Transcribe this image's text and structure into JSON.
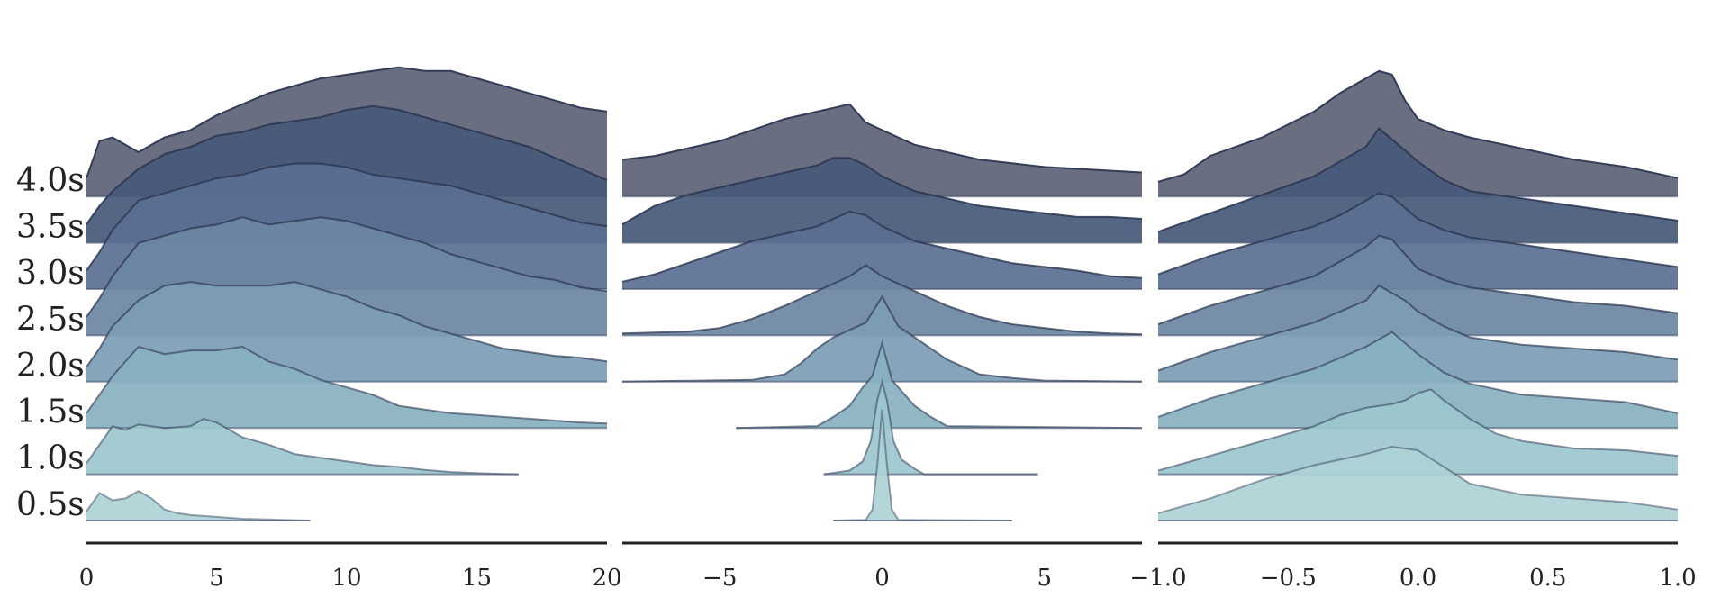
{
  "chart_data": {
    "type": "area",
    "layout": "ridgeline, 3 panels sharing row labels",
    "rows": [
      "0.5s",
      "1.0s",
      "1.5s",
      "2.0s",
      "2.5s",
      "3.0s",
      "3.5s",
      "4.0s"
    ],
    "row_colors": [
      "#aed2d6",
      "#9cc7cd",
      "#88b1c0",
      "#7c9db4",
      "#6d86a3",
      "#5b6f92",
      "#47587a",
      "#5d6276"
    ],
    "grid": false,
    "legend": "none",
    "panels": [
      {
        "xlim": [
          0,
          20
        ],
        "xticks": [
          "0",
          "5",
          "10",
          "15",
          "20"
        ],
        "series": [
          {
            "name": "0.5s",
            "x": [
              0,
              0.5,
              1,
              1.5,
              2,
              2.5,
              3,
              3.5,
              4,
              5,
              6,
              7,
              8,
              8.6
            ],
            "y": [
              0.25,
              0.75,
              0.55,
              0.6,
              0.8,
              0.6,
              0.3,
              0.2,
              0.15,
              0.1,
              0.05,
              0.03,
              0.01,
              0
            ]
          },
          {
            "name": "1.0s",
            "x": [
              0,
              0.5,
              1,
              1.5,
              2,
              3,
              4,
              4.5,
              5,
              5.5,
              6,
              7,
              8,
              9,
              10,
              11,
              12,
              13,
              14,
              15,
              16,
              16.6
            ],
            "y": [
              0.3,
              0.8,
              1.3,
              1.2,
              1.35,
              1.25,
              1.3,
              1.5,
              1.4,
              1.2,
              1.0,
              0.8,
              0.55,
              0.45,
              0.35,
              0.25,
              0.2,
              0.12,
              0.06,
              0.03,
              0.01,
              0
            ]
          },
          {
            "name": "1.5s",
            "x": [
              0,
              0.5,
              1,
              2,
              3,
              4,
              5,
              6,
              7,
              8,
              9,
              10,
              11,
              12,
              13,
              14,
              15,
              16,
              17,
              18,
              19,
              20
            ],
            "y": [
              0.4,
              0.9,
              1.4,
              2.2,
              2.0,
              2.1,
              2.1,
              2.2,
              1.8,
              1.6,
              1.3,
              1.1,
              0.9,
              0.6,
              0.5,
              0.4,
              0.35,
              0.3,
              0.25,
              0.2,
              0.15,
              0.12
            ]
          },
          {
            "name": "2.0s",
            "x": [
              0,
              0.5,
              1,
              2,
              3,
              4,
              5,
              6,
              7,
              8,
              9,
              10,
              11,
              12,
              13,
              14,
              15,
              16,
              17,
              18,
              19,
              20
            ],
            "y": [
              0.4,
              0.9,
              1.5,
              2.2,
              2.6,
              2.7,
              2.6,
              2.6,
              2.6,
              2.7,
              2.5,
              2.3,
              2.0,
              1.8,
              1.5,
              1.3,
              1.1,
              0.9,
              0.8,
              0.7,
              0.65,
              0.55
            ]
          },
          {
            "name": "2.5s",
            "x": [
              0,
              0.5,
              1,
              2,
              3,
              4,
              5,
              6,
              7,
              8,
              9,
              10,
              11,
              12,
              13,
              14,
              15,
              16,
              17,
              18,
              19,
              20
            ],
            "y": [
              0.5,
              1.0,
              1.6,
              2.5,
              2.7,
              2.9,
              3.0,
              3.2,
              3.0,
              3.1,
              3.2,
              3.1,
              2.9,
              2.7,
              2.5,
              2.2,
              2.0,
              1.8,
              1.6,
              1.5,
              1.3,
              1.2
            ]
          },
          {
            "name": "3.0s",
            "x": [
              0,
              0.5,
              1,
              2,
              3,
              4,
              5,
              6,
              7,
              8,
              9,
              10,
              11,
              12,
              13,
              14,
              15,
              16,
              17,
              18,
              19,
              20
            ],
            "y": [
              0.5,
              1.0,
              1.6,
              2.4,
              2.6,
              2.8,
              3.0,
              3.1,
              3.3,
              3.4,
              3.4,
              3.3,
              3.1,
              3.0,
              2.9,
              2.8,
              2.6,
              2.4,
              2.2,
              2.0,
              1.8,
              1.7
            ]
          },
          {
            "name": "3.5s",
            "x": [
              0,
              0.5,
              1,
              2,
              3,
              4,
              5,
              6,
              7,
              8,
              9,
              10,
              11,
              12,
              13,
              14,
              15,
              16,
              17,
              18,
              19,
              20
            ],
            "y": [
              0.5,
              1.0,
              1.4,
              2.0,
              2.4,
              2.6,
              2.9,
              3.0,
              3.2,
              3.3,
              3.4,
              3.6,
              3.7,
              3.6,
              3.4,
              3.2,
              3.0,
              2.8,
              2.6,
              2.3,
              2.0,
              1.7
            ]
          },
          {
            "name": "4.0s",
            "x": [
              0,
              0.5,
              1,
              1.5,
              2,
              2.5,
              3,
              4,
              5,
              6,
              7,
              8,
              9,
              10,
              11,
              12,
              13,
              14,
              15,
              16,
              17,
              18,
              19,
              20
            ],
            "y": [
              0.5,
              1.5,
              1.6,
              1.4,
              1.2,
              1.4,
              1.6,
              1.8,
              2.2,
              2.5,
              2.8,
              3.0,
              3.2,
              3.3,
              3.4,
              3.5,
              3.4,
              3.4,
              3.2,
              3.0,
              2.8,
              2.6,
              2.4,
              2.3
            ]
          }
        ]
      },
      {
        "xlim": [
          -8,
          8
        ],
        "xticks": [
          "−5",
          "0",
          "5"
        ],
        "series": [
          {
            "name": "0.5s",
            "x": [
              -1.5,
              -0.5,
              -0.3,
              -0.15,
              0,
              0.15,
              0.3,
              0.5,
              4
            ],
            "y": [
              0,
              0.02,
              0.3,
              1.5,
              3.0,
              1.5,
              0.3,
              0.02,
              0
            ]
          },
          {
            "name": "1.0s",
            "x": [
              -1.8,
              -1,
              -0.6,
              -0.35,
              -0.15,
              0,
              0.15,
              0.35,
              0.6,
              1,
              1.3,
              4.8
            ],
            "y": [
              0,
              0.1,
              0.35,
              0.9,
              2.0,
              2.5,
              2.0,
              0.9,
              0.4,
              0.15,
              0,
              0
            ]
          },
          {
            "name": "1.5s",
            "x": [
              -4.5,
              -2,
              -1.5,
              -1,
              -0.6,
              -0.3,
              0,
              0.3,
              0.6,
              1,
              1.5,
              2,
              8
            ],
            "y": [
              0,
              0.05,
              0.3,
              0.6,
              1.1,
              1.4,
              2.3,
              1.3,
              1.0,
              0.6,
              0.3,
              0.05,
              0
            ]
          },
          {
            "name": "2.0s",
            "x": [
              -8,
              -4,
              -3,
              -2.5,
              -2,
              -1.5,
              -1,
              -0.5,
              0,
              0.5,
              1,
              1.5,
              2,
              2.5,
              3,
              4,
              5,
              8
            ],
            "y": [
              0,
              0.05,
              0.2,
              0.5,
              0.9,
              1.2,
              1.4,
              1.6,
              2.3,
              1.5,
              1.2,
              0.9,
              0.6,
              0.4,
              0.2,
              0.1,
              0.03,
              0
            ]
          },
          {
            "name": "2.5s",
            "x": [
              -8,
              -6,
              -5,
              -4,
              -3,
              -2.5,
              -2,
              -1.5,
              -1,
              -0.5,
              0,
              0.5,
              1,
              1.5,
              2,
              3,
              4,
              5,
              6,
              7,
              8
            ],
            "y": [
              0.05,
              0.1,
              0.2,
              0.45,
              0.8,
              1.0,
              1.2,
              1.4,
              1.6,
              1.9,
              1.6,
              1.4,
              1.2,
              1.0,
              0.8,
              0.5,
              0.3,
              0.2,
              0.1,
              0.05,
              0.03
            ]
          },
          {
            "name": "3.0s",
            "x": [
              -8,
              -7,
              -6,
              -5,
              -4,
              -3,
              -2,
              -1.5,
              -1,
              -0.5,
              0,
              0.5,
              1,
              2,
              3,
              4,
              5,
              6,
              7,
              8
            ],
            "y": [
              0.2,
              0.4,
              0.7,
              1.0,
              1.3,
              1.5,
              1.7,
              1.9,
              2.1,
              2.0,
              1.7,
              1.5,
              1.3,
              1.1,
              0.9,
              0.7,
              0.6,
              0.5,
              0.35,
              0.3
            ]
          },
          {
            "name": "3.5s",
            "x": [
              -8,
              -7,
              -6,
              -5,
              -4,
              -3,
              -2,
              -1.5,
              -1,
              -0.5,
              0,
              0.5,
              1,
              2,
              3,
              4,
              5,
              6,
              7,
              8
            ],
            "y": [
              0.5,
              1.0,
              1.3,
              1.5,
              1.7,
              1.9,
              2.1,
              2.3,
              2.3,
              2.1,
              1.8,
              1.6,
              1.4,
              1.2,
              1.0,
              0.9,
              0.8,
              0.7,
              0.7,
              0.65
            ]
          },
          {
            "name": "4.0s",
            "x": [
              -8,
              -7,
              -6,
              -5,
              -4,
              -3,
              -2,
              -1.5,
              -1,
              -0.5,
              0,
              0.5,
              1,
              2,
              3,
              4,
              5,
              6,
              7,
              8
            ],
            "y": [
              1.0,
              1.1,
              1.3,
              1.5,
              1.8,
              2.1,
              2.3,
              2.4,
              2.5,
              2.0,
              1.8,
              1.6,
              1.4,
              1.2,
              1.0,
              0.9,
              0.8,
              0.75,
              0.7,
              0.65
            ]
          }
        ]
      },
      {
        "xlim": [
          -1.0,
          1.0
        ],
        "xticks": [
          "−1.0",
          "−0.5",
          "0.0",
          "0.5",
          "1.0"
        ],
        "series": [
          {
            "name": "0.5s",
            "x": [
              -1.0,
              -0.8,
              -0.6,
              -0.4,
              -0.2,
              -0.1,
              0.0,
              0.2,
              0.4,
              0.6,
              0.8,
              1.0
            ],
            "y": [
              0.2,
              0.6,
              1.1,
              1.5,
              1.8,
              2.0,
              1.9,
              1.0,
              0.7,
              0.6,
              0.5,
              0.3
            ]
          },
          {
            "name": "1.0s",
            "x": [
              -1.0,
              -0.8,
              -0.6,
              -0.4,
              -0.3,
              -0.2,
              -0.1,
              -0.05,
              0.0,
              0.05,
              0.1,
              0.2,
              0.3,
              0.4,
              0.5,
              0.6,
              0.8,
              1.0
            ],
            "y": [
              0.1,
              0.5,
              0.9,
              1.3,
              1.6,
              1.8,
              1.9,
              2.0,
              2.2,
              2.3,
              2.0,
              1.5,
              1.1,
              0.9,
              0.8,
              0.7,
              0.65,
              0.5
            ]
          },
          {
            "name": "1.5s",
            "x": [
              -1.0,
              -0.8,
              -0.6,
              -0.4,
              -0.3,
              -0.2,
              -0.1,
              0.0,
              0.1,
              0.2,
              0.4,
              0.6,
              0.8,
              1.0
            ],
            "y": [
              0.3,
              0.8,
              1.2,
              1.6,
              1.9,
              2.2,
              2.6,
              2.0,
              1.5,
              1.2,
              0.9,
              0.8,
              0.7,
              0.4
            ]
          },
          {
            "name": "2.0s",
            "x": [
              -1.0,
              -0.8,
              -0.6,
              -0.4,
              -0.3,
              -0.2,
              -0.15,
              -0.1,
              -0.05,
              0.0,
              0.1,
              0.2,
              0.4,
              0.6,
              0.8,
              1.0
            ],
            "y": [
              0.3,
              0.8,
              1.2,
              1.6,
              1.9,
              2.2,
              2.6,
              2.4,
              2.2,
              1.9,
              1.5,
              1.2,
              1.0,
              0.9,
              0.8,
              0.6
            ]
          },
          {
            "name": "2.5s",
            "x": [
              -1.0,
              -0.8,
              -0.6,
              -0.4,
              -0.3,
              -0.2,
              -0.15,
              -0.1,
              -0.05,
              0.0,
              0.1,
              0.2,
              0.4,
              0.6,
              0.8,
              1.0
            ],
            "y": [
              0.3,
              0.8,
              1.2,
              1.6,
              2.0,
              2.4,
              2.7,
              2.6,
              2.2,
              1.8,
              1.5,
              1.3,
              1.1,
              0.9,
              0.8,
              0.6
            ]
          },
          {
            "name": "3.0s",
            "x": [
              -1.0,
              -0.8,
              -0.6,
              -0.4,
              -0.3,
              -0.2,
              -0.15,
              -0.1,
              0.0,
              0.1,
              0.2,
              0.4,
              0.6,
              0.8,
              1.0
            ],
            "y": [
              0.4,
              0.9,
              1.3,
              1.7,
              2.0,
              2.4,
              2.6,
              2.5,
              1.9,
              1.6,
              1.4,
              1.2,
              1.0,
              0.8,
              0.6
            ]
          },
          {
            "name": "3.5s",
            "x": [
              -1.0,
              -0.8,
              -0.6,
              -0.4,
              -0.3,
              -0.2,
              -0.15,
              -0.1,
              0.0,
              0.1,
              0.2,
              0.4,
              0.6,
              0.8,
              1.0
            ],
            "y": [
              0.3,
              0.8,
              1.3,
              1.8,
              2.2,
              2.6,
              3.1,
              2.8,
              2.2,
              1.7,
              1.4,
              1.2,
              1.0,
              0.8,
              0.6
            ]
          },
          {
            "name": "4.0s",
            "x": [
              -1.0,
              -0.9,
              -0.8,
              -0.6,
              -0.4,
              -0.3,
              -0.2,
              -0.15,
              -0.1,
              -0.05,
              0.0,
              0.1,
              0.2,
              0.4,
              0.6,
              0.8,
              1.0
            ],
            "y": [
              0.4,
              0.6,
              1.1,
              1.6,
              2.3,
              2.8,
              3.2,
              3.4,
              3.3,
              2.6,
              2.1,
              1.8,
              1.6,
              1.3,
              1.0,
              0.8,
              0.5
            ]
          }
        ]
      }
    ]
  }
}
